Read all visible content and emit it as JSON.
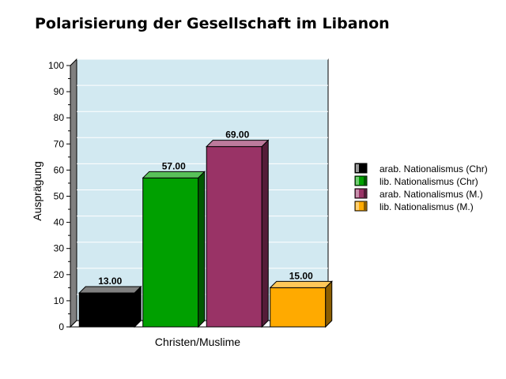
{
  "chart_data": {
    "type": "bar",
    "title": "Polarisierung der Gesellschaft im Libanon",
    "xlabel": "Christen/Muslime",
    "ylabel": "Ausprägung",
    "categories": [
      "Christen/Muslime"
    ],
    "ylim": [
      0,
      100
    ],
    "yticks": [
      0,
      10,
      20,
      30,
      40,
      50,
      60,
      70,
      80,
      90,
      100
    ],
    "grid": true,
    "legend_position": "right",
    "series": [
      {
        "name": "arab. Nationalismus (Chr)",
        "values": [
          13.0
        ],
        "label": "13.00",
        "color": "#000000"
      },
      {
        "name": "lib. Nationalismus (Chr)",
        "values": [
          57.0
        ],
        "label": "57.00",
        "color": "#00a000"
      },
      {
        "name": "arab. Nationalismus (M.)",
        "values": [
          69.0
        ],
        "label": "69.00",
        "color": "#993366"
      },
      {
        "name": "lib. Nationalismus (M.)",
        "values": [
          15.0
        ],
        "label": "15.00",
        "color": "#ffaa00"
      }
    ],
    "plot_background": "#d2e9f1"
  }
}
